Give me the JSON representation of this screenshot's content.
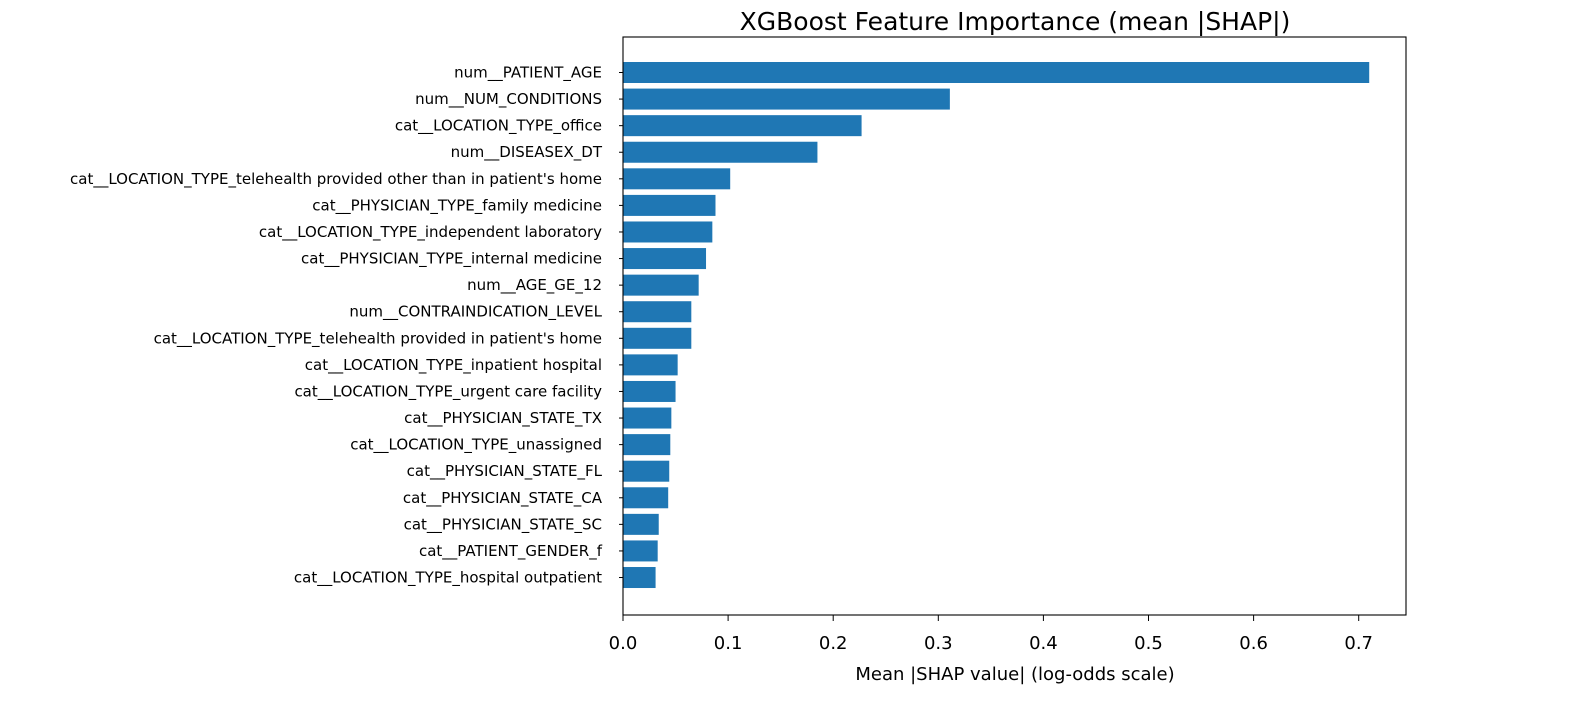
{
  "chart_data": {
    "type": "bar",
    "orientation": "horizontal",
    "title": "XGBoost Feature Importance (mean |SHAP|)",
    "xlabel": "Mean |SHAP value| (log-odds scale)",
    "ylabel": "",
    "xlim": [
      0,
      0.745
    ],
    "xticks": [
      0.0,
      0.1,
      0.2,
      0.3,
      0.4,
      0.5,
      0.6,
      0.7
    ],
    "xtick_labels": [
      "0.0",
      "0.1",
      "0.2",
      "0.3",
      "0.4",
      "0.5",
      "0.6",
      "0.7"
    ],
    "grid": false,
    "bar_color": "#1f77b4",
    "categories": [
      "num__PATIENT_AGE",
      "num__NUM_CONDITIONS",
      "cat__LOCATION_TYPE_office",
      "num__DISEASEX_DT",
      "cat__LOCATION_TYPE_telehealth provided other than in patient's home",
      "cat__PHYSICIAN_TYPE_family medicine",
      "cat__LOCATION_TYPE_independent laboratory",
      "cat__PHYSICIAN_TYPE_internal medicine",
      "num__AGE_GE_12",
      "num__CONTRAINDICATION_LEVEL",
      "cat__LOCATION_TYPE_telehealth provided in patient's home",
      "cat__LOCATION_TYPE_inpatient hospital",
      "cat__LOCATION_TYPE_urgent care facility",
      "cat__PHYSICIAN_STATE_TX",
      "cat__LOCATION_TYPE_unassigned",
      "cat__PHYSICIAN_STATE_FL",
      "cat__PHYSICIAN_STATE_CA",
      "cat__PHYSICIAN_STATE_SC",
      "cat__PATIENT_GENDER_f",
      "cat__LOCATION_TYPE_hospital outpatient"
    ],
    "values": [
      0.71,
      0.311,
      0.227,
      0.185,
      0.102,
      0.088,
      0.085,
      0.079,
      0.072,
      0.065,
      0.065,
      0.052,
      0.05,
      0.046,
      0.045,
      0.044,
      0.043,
      0.034,
      0.033,
      0.031
    ]
  }
}
